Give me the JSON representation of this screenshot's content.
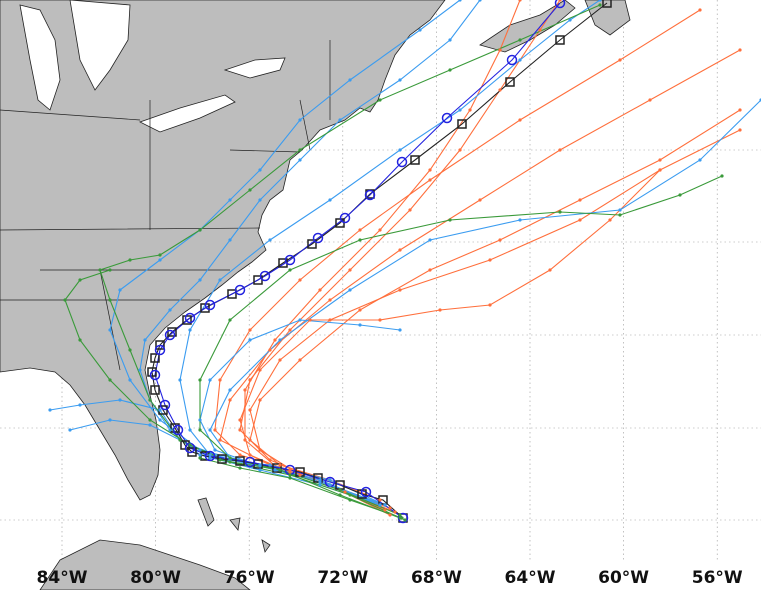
{
  "map": {
    "lon_ticks": [
      {
        "value": -84,
        "label": "84°W"
      },
      {
        "value": -80,
        "label": "80°W"
      },
      {
        "value": -76,
        "label": "76°W"
      },
      {
        "value": -72,
        "label": "72°W"
      },
      {
        "value": -68,
        "label": "68°W"
      },
      {
        "value": -64,
        "label": "64°W"
      },
      {
        "value": -60,
        "label": "60°W"
      },
      {
        "value": -56,
        "label": "56°W"
      }
    ]
  }
}
